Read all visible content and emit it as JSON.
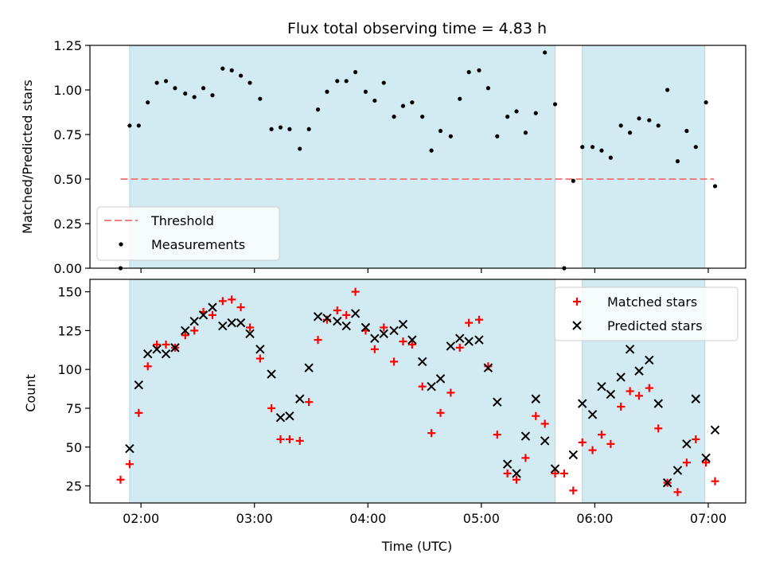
{
  "chart_data": [
    {
      "type": "scatter",
      "title": "Flux total observing time = 4.83 h",
      "xlabel": "",
      "ylabel": "Matched/Predicted stars",
      "ylim": [
        0,
        1.25
      ],
      "yticks": [
        "0.00",
        "0.25",
        "0.50",
        "0.75",
        "1.00",
        "1.25"
      ],
      "xticks": [
        "02:00",
        "03:00",
        "04:00",
        "05:00",
        "06:00",
        "07:00"
      ],
      "x_axis_unit": "hours UTC",
      "xlim": [
        1.55,
        7.33
      ],
      "shaded_intervals": [
        [
          1.9,
          5.65
        ],
        [
          5.89,
          6.97
        ]
      ],
      "shade_color": "#add8e6",
      "threshold": {
        "name": "Threshold",
        "value": 0.5,
        "x_range": [
          1.82,
          7.05
        ],
        "color": "#f08080"
      },
      "series": [
        {
          "name": "Measurements",
          "color": "#000000",
          "points": [
            [
              1.82,
              0.0
            ],
            [
              1.9,
              0.8
            ],
            [
              1.98,
              0.8
            ],
            [
              2.06,
              0.93
            ],
            [
              2.14,
              1.04
            ],
            [
              2.22,
              1.05
            ],
            [
              2.3,
              1.01
            ],
            [
              2.39,
              0.98
            ],
            [
              2.47,
              0.96
            ],
            [
              2.55,
              1.01
            ],
            [
              2.63,
              0.97
            ],
            [
              2.72,
              1.12
            ],
            [
              2.8,
              1.11
            ],
            [
              2.88,
              1.08
            ],
            [
              2.96,
              1.04
            ],
            [
              3.05,
              0.95
            ],
            [
              3.15,
              0.78
            ],
            [
              3.23,
              0.79
            ],
            [
              3.31,
              0.78
            ],
            [
              3.4,
              0.67
            ],
            [
              3.48,
              0.78
            ],
            [
              3.56,
              0.89
            ],
            [
              3.64,
              0.99
            ],
            [
              3.73,
              1.05
            ],
            [
              3.81,
              1.05
            ],
            [
              3.89,
              1.1
            ],
            [
              3.98,
              0.99
            ],
            [
              4.06,
              0.94
            ],
            [
              4.14,
              1.04
            ],
            [
              4.23,
              0.85
            ],
            [
              4.31,
              0.91
            ],
            [
              4.39,
              0.93
            ],
            [
              4.48,
              0.85
            ],
            [
              4.56,
              0.66
            ],
            [
              4.64,
              0.77
            ],
            [
              4.73,
              0.74
            ],
            [
              4.81,
              0.95
            ],
            [
              4.89,
              1.1
            ],
            [
              4.98,
              1.11
            ],
            [
              5.06,
              1.01
            ],
            [
              5.14,
              0.74
            ],
            [
              5.23,
              0.85
            ],
            [
              5.31,
              0.88
            ],
            [
              5.39,
              0.76
            ],
            [
              5.48,
              0.87
            ],
            [
              5.56,
              1.21
            ],
            [
              5.65,
              0.92
            ],
            [
              5.73,
              0.0
            ],
            [
              5.81,
              0.49
            ],
            [
              5.89,
              0.68
            ],
            [
              5.98,
              0.68
            ],
            [
              6.06,
              0.66
            ],
            [
              6.14,
              0.62
            ],
            [
              6.23,
              0.8
            ],
            [
              6.31,
              0.76
            ],
            [
              6.39,
              0.84
            ],
            [
              6.48,
              0.83
            ],
            [
              6.56,
              0.8
            ],
            [
              6.64,
              1.0
            ],
            [
              6.73,
              0.6
            ],
            [
              6.81,
              0.77
            ],
            [
              6.89,
              0.68
            ],
            [
              6.98,
              0.93
            ],
            [
              7.06,
              0.46
            ]
          ]
        }
      ],
      "legend": {
        "position": "lower-left",
        "entries": [
          "Threshold",
          "Measurements"
        ]
      }
    },
    {
      "type": "scatter",
      "title": "",
      "xlabel": "Time (UTC)",
      "ylabel": "Count",
      "ylim": [
        14,
        158
      ],
      "yticks": [
        "25",
        "50",
        "75",
        "100",
        "125",
        "150"
      ],
      "xticks": [
        "02:00",
        "03:00",
        "04:00",
        "05:00",
        "06:00",
        "07:00"
      ],
      "x_axis_unit": "hours UTC",
      "xlim": [
        1.55,
        7.33
      ],
      "shaded_intervals": [
        [
          1.9,
          5.65
        ],
        [
          5.89,
          6.97
        ]
      ],
      "shade_color": "#add8e6",
      "series": [
        {
          "name": "Matched stars",
          "marker": "plus",
          "color": "#ff0000",
          "points": [
            [
              1.82,
              29
            ],
            [
              1.9,
              39
            ],
            [
              1.98,
              72
            ],
            [
              2.06,
              102
            ],
            [
              2.14,
              116
            ],
            [
              2.22,
              116
            ],
            [
              2.3,
              114
            ],
            [
              2.39,
              122
            ],
            [
              2.47,
              125
            ],
            [
              2.55,
              137
            ],
            [
              2.63,
              135
            ],
            [
              2.72,
              144
            ],
            [
              2.8,
              145
            ],
            [
              2.88,
              140
            ],
            [
              2.96,
              127
            ],
            [
              3.05,
              107
            ],
            [
              3.15,
              75
            ],
            [
              3.23,
              55
            ],
            [
              3.31,
              55
            ],
            [
              3.4,
              54
            ],
            [
              3.48,
              79
            ],
            [
              3.56,
              119
            ],
            [
              3.64,
              132
            ],
            [
              3.73,
              138
            ],
            [
              3.81,
              135
            ],
            [
              3.89,
              150
            ],
            [
              3.98,
              125
            ],
            [
              4.06,
              113
            ],
            [
              4.14,
              127
            ],
            [
              4.23,
              105
            ],
            [
              4.31,
              118
            ],
            [
              4.39,
              116
            ],
            [
              4.48,
              89
            ],
            [
              4.56,
              59
            ],
            [
              4.64,
              72
            ],
            [
              4.73,
              85
            ],
            [
              4.81,
              114
            ],
            [
              4.89,
              130
            ],
            [
              4.98,
              132
            ],
            [
              5.06,
              102
            ],
            [
              5.14,
              58
            ],
            [
              5.23,
              33
            ],
            [
              5.31,
              29
            ],
            [
              5.39,
              43
            ],
            [
              5.48,
              70
            ],
            [
              5.56,
              65
            ],
            [
              5.65,
              33
            ],
            [
              5.73,
              33
            ],
            [
              5.81,
              22
            ],
            [
              5.89,
              53
            ],
            [
              5.98,
              48
            ],
            [
              6.06,
              58
            ],
            [
              6.14,
              52
            ],
            [
              6.23,
              76
            ],
            [
              6.31,
              86
            ],
            [
              6.39,
              83
            ],
            [
              6.48,
              88
            ],
            [
              6.56,
              62
            ],
            [
              6.64,
              27
            ],
            [
              6.73,
              21
            ],
            [
              6.81,
              40
            ],
            [
              6.89,
              55
            ],
            [
              6.98,
              40
            ],
            [
              7.06,
              28
            ]
          ]
        },
        {
          "name": "Predicted stars",
          "marker": "x",
          "color": "#000000",
          "points": [
            [
              1.9,
              49
            ],
            [
              1.98,
              90
            ],
            [
              2.06,
              110
            ],
            [
              2.14,
              113
            ],
            [
              2.22,
              110
            ],
            [
              2.3,
              114
            ],
            [
              2.39,
              125
            ],
            [
              2.47,
              131
            ],
            [
              2.55,
              135
            ],
            [
              2.63,
              140
            ],
            [
              2.72,
              128
            ],
            [
              2.8,
              130
            ],
            [
              2.88,
              130
            ],
            [
              2.96,
              123
            ],
            [
              3.05,
              113
            ],
            [
              3.15,
              97
            ],
            [
              3.23,
              69
            ],
            [
              3.31,
              70
            ],
            [
              3.4,
              81
            ],
            [
              3.48,
              101
            ],
            [
              3.56,
              134
            ],
            [
              3.64,
              133
            ],
            [
              3.73,
              131
            ],
            [
              3.81,
              128
            ],
            [
              3.89,
              136
            ],
            [
              3.98,
              127
            ],
            [
              4.06,
              120
            ],
            [
              4.14,
              123
            ],
            [
              4.23,
              125
            ],
            [
              4.31,
              129
            ],
            [
              4.39,
              119
            ],
            [
              4.48,
              105
            ],
            [
              4.56,
              89
            ],
            [
              4.64,
              94
            ],
            [
              4.73,
              115
            ],
            [
              4.81,
              120
            ],
            [
              4.89,
              118
            ],
            [
              4.98,
              119
            ],
            [
              5.06,
              101
            ],
            [
              5.14,
              79
            ],
            [
              5.23,
              39
            ],
            [
              5.31,
              33
            ],
            [
              5.39,
              57
            ],
            [
              5.48,
              81
            ],
            [
              5.56,
              54
            ],
            [
              5.65,
              36
            ],
            [
              5.81,
              45
            ],
            [
              5.89,
              78
            ],
            [
              5.98,
              71
            ],
            [
              6.06,
              89
            ],
            [
              6.14,
              84
            ],
            [
              6.23,
              95
            ],
            [
              6.31,
              113
            ],
            [
              6.39,
              99
            ],
            [
              6.48,
              106
            ],
            [
              6.56,
              78
            ],
            [
              6.64,
              27
            ],
            [
              6.73,
              35
            ],
            [
              6.81,
              52
            ],
            [
              6.89,
              81
            ],
            [
              6.98,
              43
            ],
            [
              7.06,
              61
            ]
          ]
        }
      ],
      "legend": {
        "position": "top-right",
        "entries": [
          "Matched stars",
          "Predicted stars"
        ]
      }
    }
  ]
}
